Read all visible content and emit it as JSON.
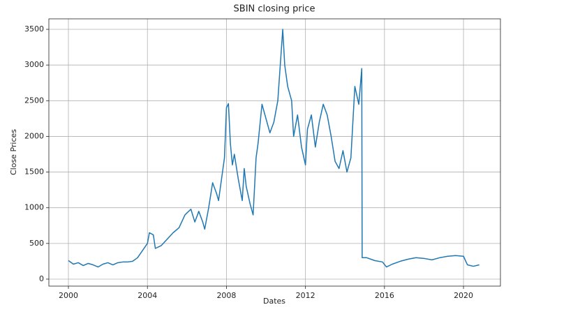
{
  "chart_data": {
    "type": "line",
    "title": "SBIN closing price",
    "x_label": "Dates",
    "y_label": "Close Prices",
    "x": [
      2000,
      2000.25,
      2000.5,
      2000.75,
      2001,
      2001.25,
      2001.5,
      2001.75,
      2002,
      2002.25,
      2002.5,
      2002.75,
      2003,
      2003.25,
      2003.5,
      2003.75,
      2004,
      2004.1,
      2004.3,
      2004.4,
      2004.7,
      2005,
      2005.3,
      2005.6,
      2005.9,
      2006.2,
      2006.4,
      2006.6,
      2006.8,
      2006.9,
      2007.1,
      2007.3,
      2007.5,
      2007.6,
      2007.8,
      2007.9,
      2008,
      2008.1,
      2008.2,
      2008.3,
      2008.4,
      2008.6,
      2008.8,
      2008.9,
      2009,
      2009.2,
      2009.35,
      2009.5,
      2009.6,
      2009.8,
      2010,
      2010.2,
      2010.4,
      2010.6,
      2010.7,
      2010.85,
      2010.95,
      2011.1,
      2011.3,
      2011.4,
      2011.6,
      2011.8,
      2012,
      2012.1,
      2012.3,
      2012.5,
      2012.7,
      2012.9,
      2013.1,
      2013.3,
      2013.5,
      2013.7,
      2013.9,
      2014.1,
      2014.3,
      2014.5,
      2014.7,
      2014.85,
      2014.87,
      2015.1,
      2015.5,
      2015.9,
      2016.1,
      2016.4,
      2016.8,
      2017.2,
      2017.6,
      2018,
      2018.4,
      2018.8,
      2019.2,
      2019.6,
      2020,
      2020.2,
      2020.5,
      2020.8
    ],
    "series": [
      {
        "name": "SBIN",
        "color": "#1f77b4",
        "values": [
          260,
          210,
          230,
          190,
          220,
          200,
          170,
          210,
          230,
          200,
          230,
          240,
          240,
          250,
          300,
          400,
          500,
          650,
          620,
          430,
          470,
          560,
          650,
          720,
          900,
          980,
          800,
          950,
          800,
          700,
          1000,
          1350,
          1200,
          1100,
          1500,
          1700,
          2400,
          2460,
          1900,
          1600,
          1750,
          1400,
          1100,
          1550,
          1300,
          1050,
          900,
          1700,
          1900,
          2450,
          2250,
          2050,
          2200,
          2500,
          2900,
          3500,
          3000,
          2700,
          2500,
          2000,
          2300,
          1850,
          1600,
          2100,
          2300,
          1850,
          2200,
          2450,
          2300,
          2000,
          1650,
          1550,
          1800,
          1500,
          1700,
          2700,
          2450,
          2950,
          300,
          300,
          260,
          240,
          170,
          210,
          250,
          280,
          300,
          290,
          270,
          300,
          320,
          330,
          320,
          200,
          180,
          200
        ]
      }
    ],
    "xlim": [
      1999.01,
      2021.87
    ],
    "xticks": [
      2000,
      2004,
      2008,
      2012,
      2016,
      2020
    ],
    "ylim": [
      -98,
      3647
    ],
    "yticks": [
      0,
      500,
      1000,
      1500,
      2000,
      2500,
      3000,
      3500
    ],
    "grid": true
  }
}
